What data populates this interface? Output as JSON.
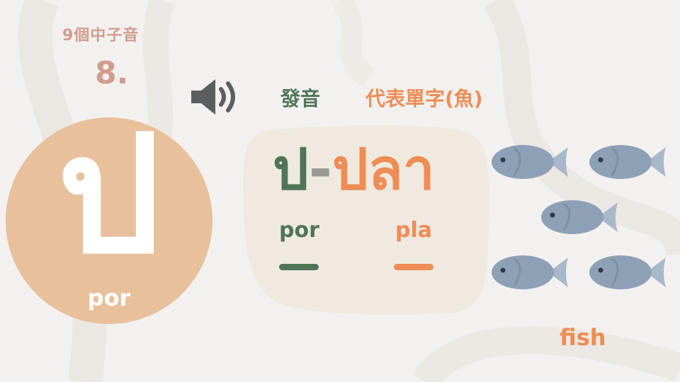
{
  "header": {
    "subtitle": "9個中子音",
    "number": "8."
  },
  "labels": {
    "pronunciation": "發音",
    "word": "代表單字(魚)"
  },
  "letter": {
    "char": "ป",
    "romanization": "por"
  },
  "word": {
    "letter_part": "ป",
    "separator": "-",
    "word_part": "ปลา",
    "romanization_letter": "por",
    "romanization_word": "pla"
  },
  "picture": {
    "caption": "fish",
    "icon": "fish-icon",
    "count": 5
  },
  "colors": {
    "background": "#f3f1ef",
    "accent_green": "#4f7559",
    "accent_orange": "#ee8d55",
    "accent_pink": "#d29c8e",
    "circle": "#e8c09b",
    "card": "#efe9df",
    "fish_body": "#8ea0b6",
    "fish_fin": "#a8b8cb"
  }
}
